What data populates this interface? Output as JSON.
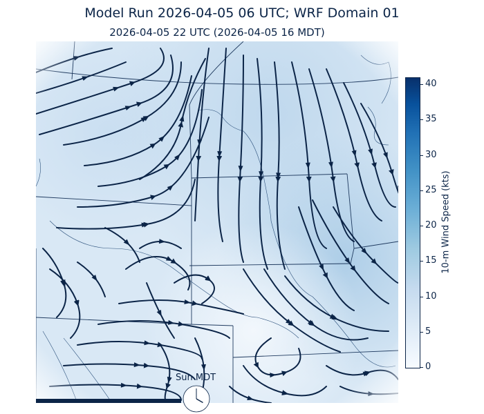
{
  "header": {
    "title": "Model Run 2026-04-05 06 UTC; WRF Domain 01",
    "valid_time": "2026-04-05 22 UTC  (2026-04-05 16 MDT)"
  },
  "colorbar": {
    "label": "10-m Wind Speed (kts)",
    "ticks": [
      "0",
      "5",
      "10",
      "15",
      "20",
      "25",
      "30",
      "35",
      "40"
    ],
    "min": 0,
    "max": 41,
    "colors": [
      "#f7fbff",
      "#deebf7",
      "#c6dbef",
      "#9ecae1",
      "#6baed6",
      "#4292c6",
      "#2171b5",
      "#08519c",
      "#08306b"
    ]
  },
  "clock": {
    "label": "Sun MDT",
    "hour": 16
  },
  "progress": {
    "fraction": 0.4
  },
  "map": {
    "streamline_color": "#0b2447",
    "border_color": "#1f3a5f"
  }
}
